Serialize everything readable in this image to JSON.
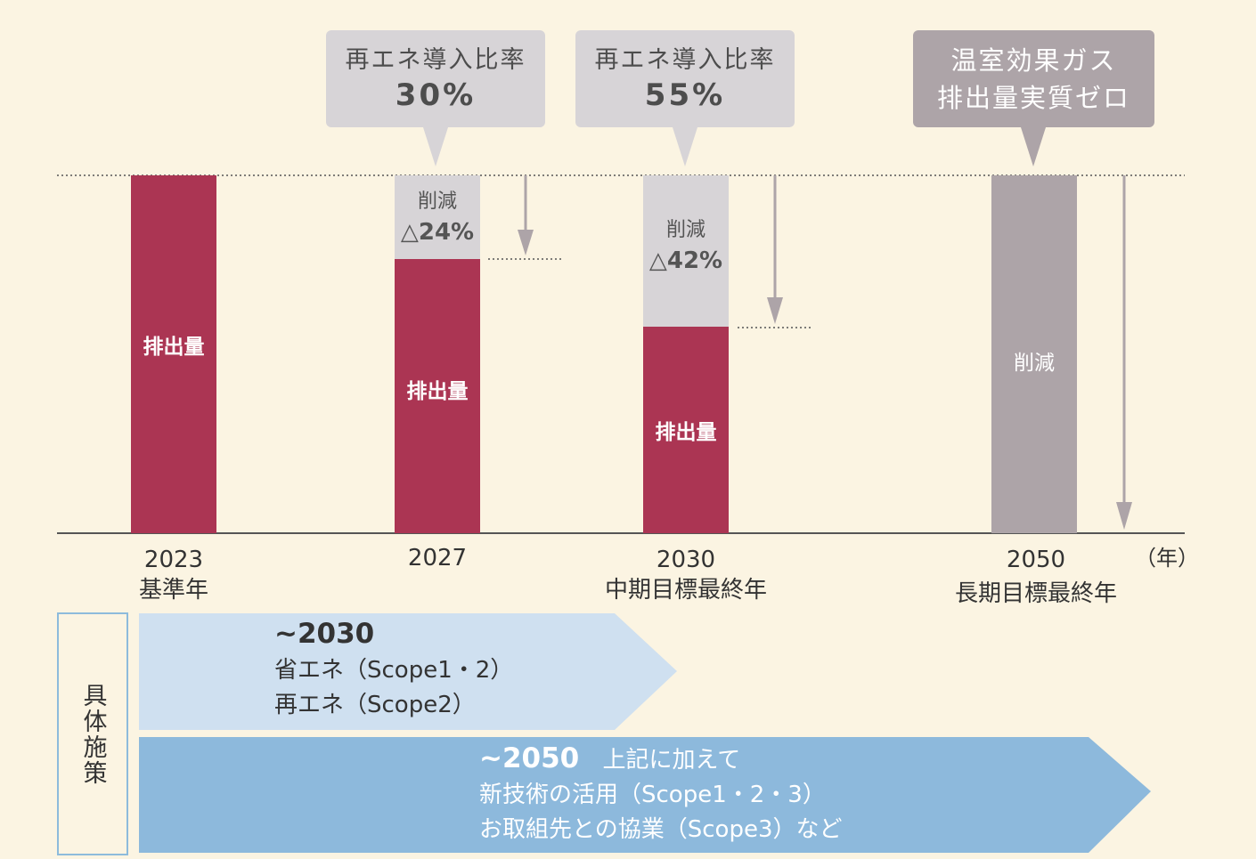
{
  "callouts": [
    {
      "line1": "再エネ導入比率",
      "line2": "30%"
    },
    {
      "line1": "再エネ導入比率",
      "line2": "55%"
    },
    {
      "line1": "温室効果ガス",
      "line2": "排出量実質ゼロ"
    }
  ],
  "bars": [
    {
      "year": "2023",
      "sub": "基準年",
      "emission_label": "排出量",
      "emission_pct": 100
    },
    {
      "year": "2027",
      "sub": "",
      "emission_label": "排出量",
      "cut_word": "削減",
      "cut_value": "△24%",
      "emission_pct": 76
    },
    {
      "year": "2030",
      "sub": "中期目標最終年",
      "emission_label": "排出量",
      "cut_word": "削減",
      "cut_value": "△42%",
      "emission_pct": 58
    },
    {
      "year": "2050",
      "sub": "長期目標最終年",
      "cut_word": "削減",
      "emission_pct": 0
    }
  ],
  "unit_label": "（年）",
  "sideband_label": "具体施策",
  "measures": [
    {
      "period": "~2030",
      "lines": [
        "省エネ（Scope1・2）",
        "再エネ（Scope2）"
      ]
    },
    {
      "period": "~2050",
      "extra": "上記に加えて",
      "lines": [
        "新技術の活用（Scope1・2・3）",
        "お取組先との協業（Scope3）など"
      ]
    }
  ],
  "colors": {
    "emission": "#ab3553",
    "reduction_light": "#d7d4d7",
    "reduction_full": "#ada4a8",
    "arrow_light": "#cfe0f0",
    "arrow_dark": "#8db9dc",
    "background": "#fbf4e2"
  }
}
